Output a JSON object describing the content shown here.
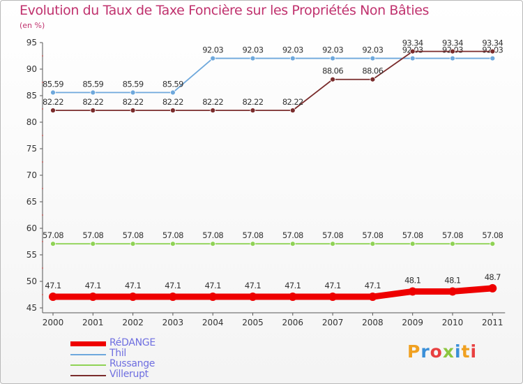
{
  "chart_data": {
    "type": "line",
    "title": "Evolution du Taux de Taxe Foncière sur les Propriétés Non Bâties",
    "unit_label": "(en %)",
    "x": [
      "2000",
      "2001",
      "2002",
      "2003",
      "2004",
      "2005",
      "2006",
      "2007",
      "2008",
      "2009",
      "2010",
      "2011"
    ],
    "ylim": [
      45,
      95
    ],
    "yticks": [
      45,
      50,
      55,
      60,
      65,
      70,
      75,
      80,
      85,
      90,
      95
    ],
    "grid": false,
    "legend_position": "bottom-left",
    "series": [
      {
        "name": "RéDANGE",
        "color": "#ee0000",
        "values": [
          47.1,
          47.1,
          47.1,
          47.1,
          47.1,
          47.1,
          47.1,
          47.1,
          47.1,
          48.1,
          48.1,
          48.7
        ],
        "labels": [
          "47.1",
          "47.1",
          "47.1",
          "47.1",
          "47.1",
          "47.1",
          "47.1",
          "47.1",
          "47.1",
          "48.1",
          "48.1",
          "48.7"
        ]
      },
      {
        "name": "Thil",
        "color": "#6ea8dc",
        "values": [
          85.59,
          85.59,
          85.59,
          85.59,
          92.03,
          92.03,
          92.03,
          92.03,
          92.03,
          92.03,
          92.03,
          92.03
        ],
        "labels": [
          "85.59",
          "85.59",
          "85.59",
          "85.59",
          "92.03",
          "92.03",
          "92.03",
          "92.03",
          "92.03",
          "92.03",
          "92.03",
          "92.03"
        ]
      },
      {
        "name": "Russange",
        "color": "#8fd255",
        "values": [
          57.08,
          57.08,
          57.08,
          57.08,
          57.08,
          57.08,
          57.08,
          57.08,
          57.08,
          57.08,
          57.08,
          57.08
        ],
        "labels": [
          "57.08",
          "57.08",
          "57.08",
          "57.08",
          "57.08",
          "57.08",
          "57.08",
          "57.08",
          "57.08",
          "57.08",
          "57.08",
          "57.08"
        ]
      },
      {
        "name": "Villerupt",
        "color": "#7a2c2c",
        "values": [
          82.22,
          82.22,
          82.22,
          82.22,
          82.22,
          82.22,
          82.22,
          88.06,
          88.06,
          93.34,
          93.34,
          93.34
        ],
        "labels": [
          "82.22",
          "82.22",
          "82.22",
          "82.22",
          "82.22",
          "82.22",
          "82.22",
          "88.06",
          "88.06",
          "93.34",
          "93.34",
          "93.34"
        ]
      }
    ]
  },
  "logo": {
    "text": "Proxiti",
    "colors": [
      "#f0a020",
      "#3a8fd8",
      "#e84040",
      "#8cc63f",
      "#3a8fd8",
      "#f0a020",
      "#e84040"
    ]
  }
}
